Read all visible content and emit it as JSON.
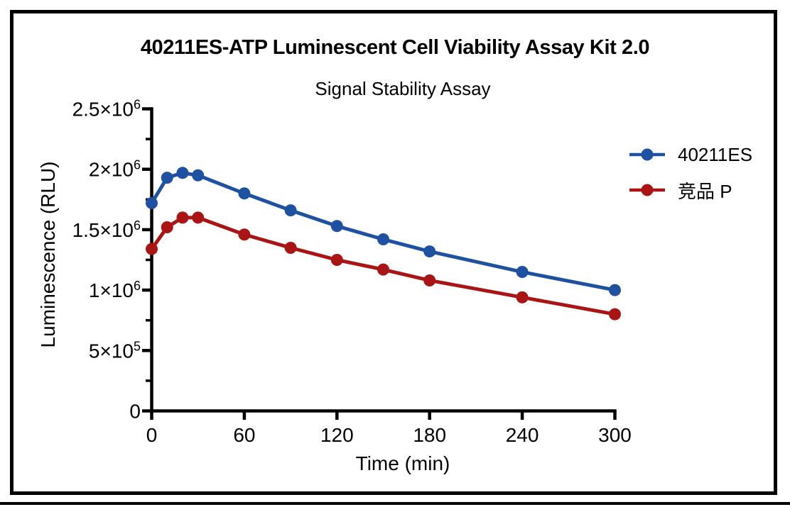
{
  "figure": {
    "background": "#ffffff",
    "frame_color": "#000000",
    "axis_color": "#000000",
    "text_color": "#000000"
  },
  "chart_data": {
    "type": "line",
    "title": "40211ES-ATP Luminescent Cell Viability Assay Kit 2.0",
    "subtitle": "Signal Stability Assay",
    "xlabel": "Time (min)",
    "ylabel": "Luminescence (RLU)",
    "xlim": [
      0,
      300
    ],
    "ylim": [
      0,
      2500000
    ],
    "grid": false,
    "legend_position": "right-outside",
    "marker": "circle",
    "x_ticks": [
      0,
      60,
      120,
      180,
      240,
      300
    ],
    "y_ticks": [
      {
        "value": 0,
        "label": "0",
        "exp": ""
      },
      {
        "value": 500000,
        "label": "5×10",
        "exp": "5"
      },
      {
        "value": 1000000,
        "label": "1×10",
        "exp": "6"
      },
      {
        "value": 1500000,
        "label": "1.5×10",
        "exp": "6"
      },
      {
        "value": 2000000,
        "label": "2×10",
        "exp": "6"
      },
      {
        "value": 2500000,
        "label": "2.5×10",
        "exp": "6"
      }
    ],
    "y_minor_ticks": [
      250000,
      750000,
      1250000,
      1750000,
      2250000
    ],
    "x": [
      0,
      10,
      20,
      30,
      60,
      90,
      120,
      150,
      180,
      240,
      300
    ],
    "series": [
      {
        "name": "40211ES",
        "color": "#1f51a1",
        "values": [
          1720000,
          1930000,
          1970000,
          1950000,
          1800000,
          1660000,
          1530000,
          1420000,
          1320000,
          1150000,
          1000000
        ]
      },
      {
        "name": "竞品 P",
        "color": "#a91515",
        "values": [
          1340000,
          1520000,
          1600000,
          1600000,
          1460000,
          1350000,
          1250000,
          1170000,
          1080000,
          940000,
          800000
        ]
      }
    ]
  }
}
